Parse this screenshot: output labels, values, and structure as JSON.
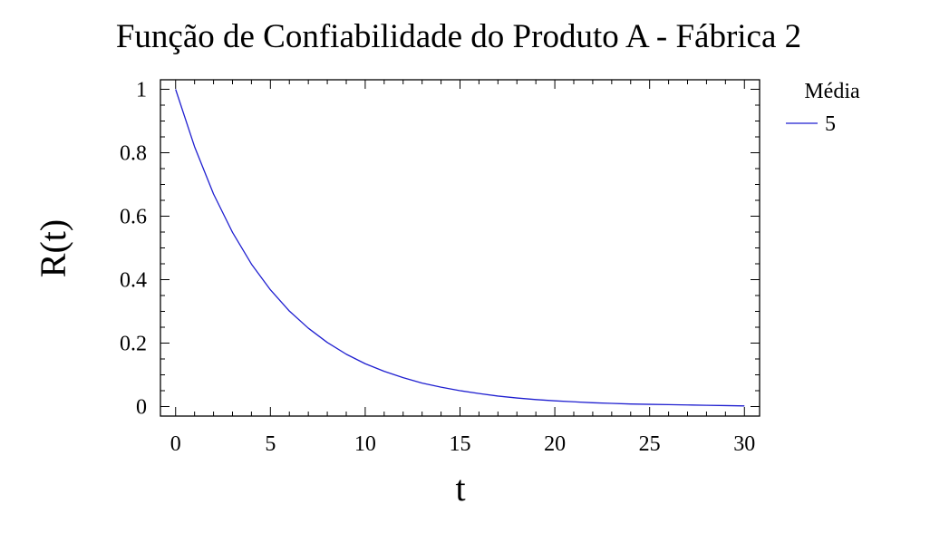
{
  "chart_data": {
    "type": "line",
    "title": "Função de Confiabilidade do Produto A - Fábrica 2",
    "xlabel": "t",
    "ylabel": "R(t)",
    "xlim": [
      -0.8,
      30.8
    ],
    "ylim": [
      -0.03,
      1.03
    ],
    "x_ticks": [
      0,
      5,
      10,
      15,
      20,
      25,
      30
    ],
    "y_ticks": [
      0,
      0.2,
      0.4,
      0.6,
      0.8,
      1
    ],
    "y_tick_labels": [
      "0",
      "0.2",
      "0.4",
      "0.6",
      "0.8",
      "1"
    ],
    "x_minor_step": 1,
    "y_minor_step": 0.05,
    "grid": false,
    "legend": {
      "title": "Média",
      "placement": "top-right outside"
    },
    "series": [
      {
        "name": "5",
        "color": "#1f1fd0",
        "x": [
          0,
          1,
          2,
          3,
          4,
          5,
          6,
          7,
          8,
          9,
          10,
          11,
          12,
          13,
          14,
          15,
          16,
          17,
          18,
          19,
          20,
          21,
          22,
          23,
          24,
          25,
          26,
          27,
          28,
          29,
          30
        ],
        "y": [
          1,
          0.819,
          0.67,
          0.549,
          0.449,
          0.368,
          0.301,
          0.247,
          0.202,
          0.165,
          0.135,
          0.111,
          0.091,
          0.074,
          0.061,
          0.05,
          0.041,
          0.033,
          0.027,
          0.022,
          0.018,
          0.015,
          0.012,
          0.01,
          0.008,
          0.007,
          0.006,
          0.005,
          0.004,
          0.003,
          0.002
        ]
      }
    ]
  }
}
